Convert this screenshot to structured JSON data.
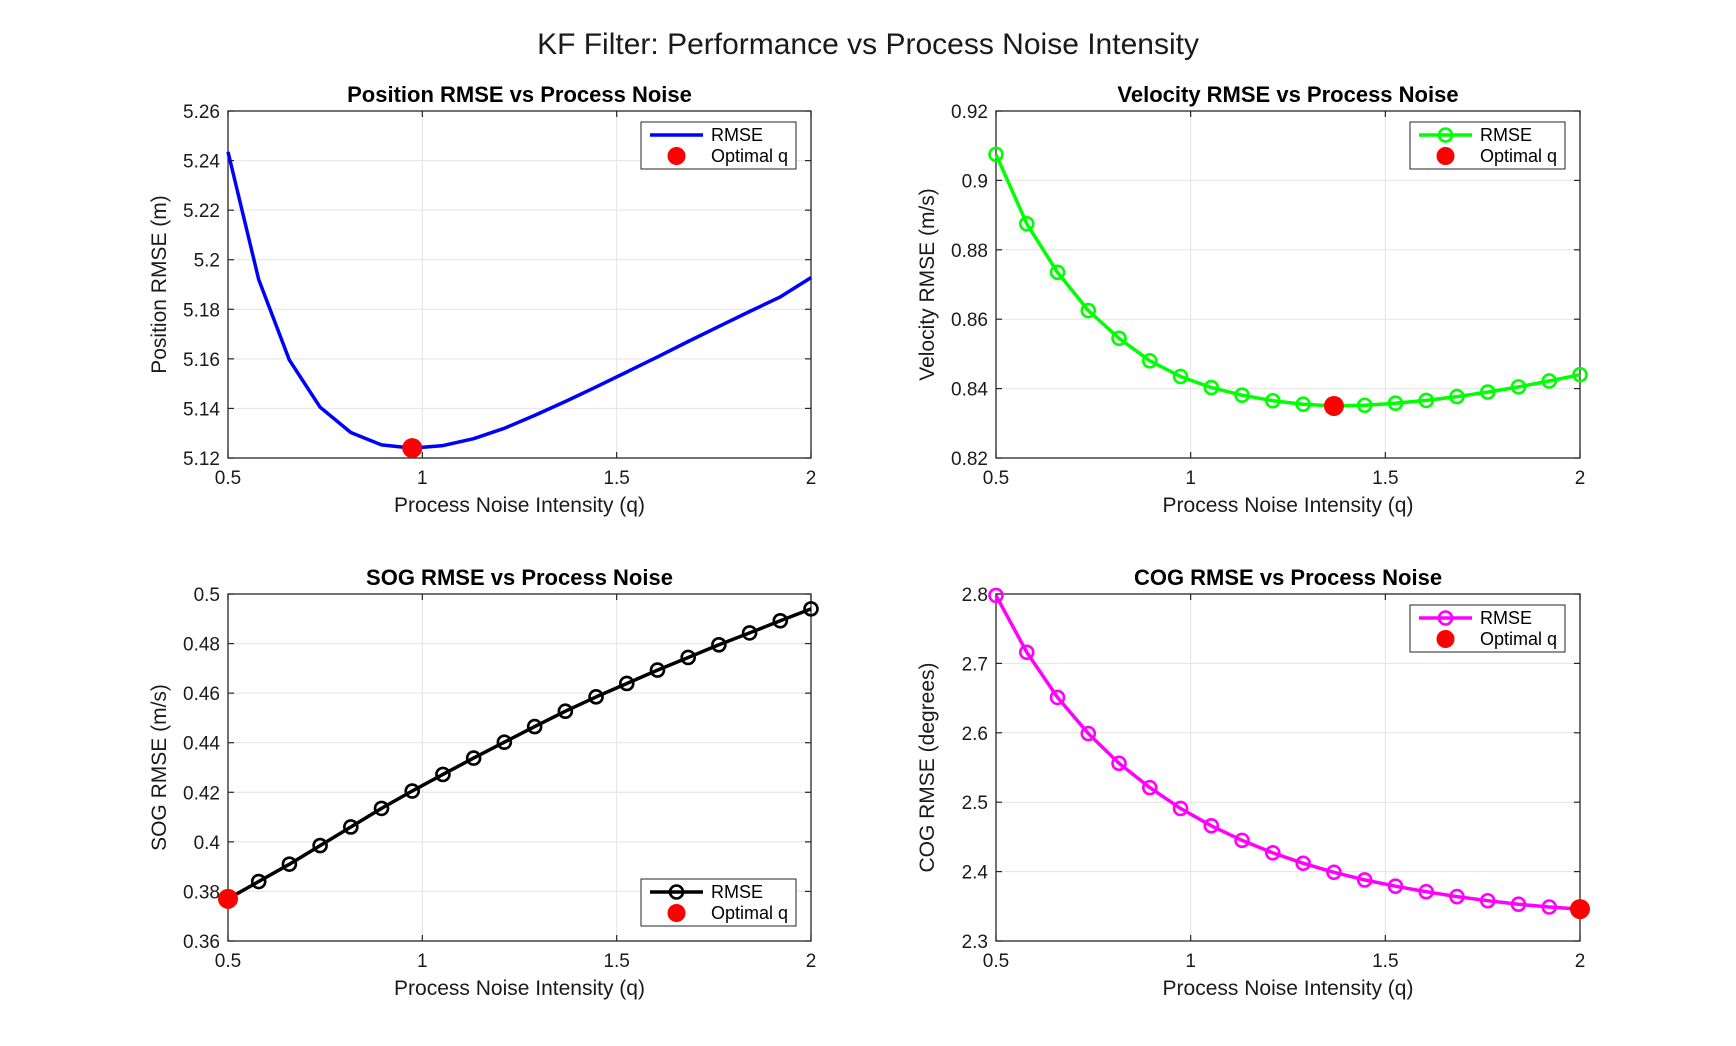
{
  "suptitle": "KF Filter: Performance vs Process Noise Intensity",
  "chart_data": [
    {
      "type": "line",
      "title": "Position RMSE vs Process Noise",
      "xlabel": "Process Noise Intensity (q)",
      "ylabel": "Position RMSE (m)",
      "xlim": [
        0.5,
        2
      ],
      "ylim": [
        5.12,
        5.26
      ],
      "xticks": [
        0.5,
        1,
        1.5,
        2
      ],
      "xtick_labels": [
        "0.5",
        "1",
        "1.5",
        "2"
      ],
      "yticks": [
        5.12,
        5.14,
        5.16,
        5.18,
        5.2,
        5.22,
        5.24,
        5.26
      ],
      "ytick_labels": [
        "5.12",
        "5.14",
        "5.16",
        "5.18",
        "5.2",
        "5.22",
        "5.24",
        "5.26"
      ],
      "grid": true,
      "legend_position": "top-right",
      "series": [
        {
          "name": "RMSE",
          "color": "#0000ff",
          "markers": false,
          "x": [
            0.5,
            0.579,
            0.658,
            0.737,
            0.816,
            0.895,
            0.974,
            1.053,
            1.132,
            1.211,
            1.289,
            1.368,
            1.447,
            1.526,
            1.605,
            1.684,
            1.763,
            1.842,
            1.921,
            2.0
          ],
          "y": [
            5.2435,
            5.192,
            5.1595,
            5.1405,
            5.1303,
            5.1253,
            5.124,
            5.125,
            5.1278,
            5.132,
            5.1372,
            5.1428,
            5.1487,
            5.1547,
            5.1608,
            5.167,
            5.1731,
            5.1791,
            5.185,
            5.1928
          ]
        }
      ],
      "optimal": {
        "name": "Optimal q",
        "x": 0.974,
        "y": 5.124,
        "color": "#ff0000"
      }
    },
    {
      "type": "line",
      "title": "Velocity RMSE vs Process Noise",
      "xlabel": "Process Noise Intensity (q)",
      "ylabel": "Velocity RMSE (m/s)",
      "xlim": [
        0.5,
        2
      ],
      "ylim": [
        0.82,
        0.92
      ],
      "xticks": [
        0.5,
        1,
        1.5,
        2
      ],
      "xtick_labels": [
        "0.5",
        "1",
        "1.5",
        "2"
      ],
      "yticks": [
        0.82,
        0.84,
        0.86,
        0.88,
        0.9,
        0.92
      ],
      "ytick_labels": [
        "0.82",
        "0.84",
        "0.86",
        "0.88",
        "0.9",
        "0.92"
      ],
      "grid": true,
      "legend_position": "top-right",
      "series": [
        {
          "name": "RMSE",
          "color": "#00ff00",
          "markers": true,
          "x": [
            0.5,
            0.579,
            0.658,
            0.737,
            0.816,
            0.895,
            0.974,
            1.053,
            1.132,
            1.211,
            1.289,
            1.368,
            1.447,
            1.526,
            1.605,
            1.684,
            1.763,
            1.842,
            1.921,
            2.0
          ],
          "y": [
            0.9075,
            0.8875,
            0.8735,
            0.8625,
            0.8545,
            0.848,
            0.8435,
            0.8403,
            0.8381,
            0.8365,
            0.8355,
            0.835,
            0.8352,
            0.8358,
            0.8366,
            0.8377,
            0.839,
            0.8405,
            0.8422,
            0.844
          ]
        }
      ],
      "optimal": {
        "name": "Optimal q",
        "x": 1.368,
        "y": 0.835,
        "color": "#ff0000"
      }
    },
    {
      "type": "line",
      "title": "SOG RMSE vs Process Noise",
      "xlabel": "Process Noise Intensity (q)",
      "ylabel": "SOG RMSE (m/s)",
      "xlim": [
        0.5,
        2
      ],
      "ylim": [
        0.36,
        0.5
      ],
      "xticks": [
        0.5,
        1,
        1.5,
        2
      ],
      "xtick_labels": [
        "0.5",
        "1",
        "1.5",
        "2"
      ],
      "yticks": [
        0.36,
        0.38,
        0.4,
        0.42,
        0.44,
        0.46,
        0.48,
        0.5
      ],
      "ytick_labels": [
        "0.36",
        "0.38",
        "0.4",
        "0.42",
        "0.44",
        "0.46",
        "0.48",
        "0.5"
      ],
      "grid": true,
      "legend_position": "bottom-right",
      "series": [
        {
          "name": "RMSE",
          "color": "#000000",
          "markers": true,
          "x": [
            0.5,
            0.579,
            0.658,
            0.737,
            0.816,
            0.895,
            0.974,
            1.053,
            1.132,
            1.211,
            1.289,
            1.368,
            1.447,
            1.526,
            1.605,
            1.684,
            1.763,
            1.842,
            1.921,
            2.0
          ],
          "y": [
            0.377,
            0.384,
            0.391,
            0.3985,
            0.406,
            0.4135,
            0.4205,
            0.4272,
            0.4338,
            0.4402,
            0.4465,
            0.4527,
            0.4585,
            0.4639,
            0.4693,
            0.4744,
            0.4795,
            0.4843,
            0.4892,
            0.494
          ]
        }
      ],
      "optimal": {
        "name": "Optimal q",
        "x": 0.5,
        "y": 0.377,
        "color": "#ff0000"
      }
    },
    {
      "type": "line",
      "title": "COG RMSE vs Process Noise",
      "xlabel": "Process Noise Intensity (q)",
      "ylabel": "COG RMSE (degrees)",
      "xlim": [
        0.5,
        2
      ],
      "ylim": [
        2.3,
        2.8
      ],
      "xticks": [
        0.5,
        1,
        1.5,
        2
      ],
      "xtick_labels": [
        "0.5",
        "1",
        "1.5",
        "2"
      ],
      "yticks": [
        2.3,
        2.4,
        2.5,
        2.6,
        2.7,
        2.8
      ],
      "ytick_labels": [
        "2.3",
        "2.4",
        "2.5",
        "2.6",
        "2.7",
        "2.8"
      ],
      "grid": true,
      "legend_position": "top-right",
      "series": [
        {
          "name": "RMSE",
          "color": "#ff00ff",
          "markers": true,
          "x": [
            0.5,
            0.579,
            0.658,
            0.737,
            0.816,
            0.895,
            0.974,
            1.053,
            1.132,
            1.211,
            1.289,
            1.368,
            1.447,
            1.526,
            1.605,
            1.684,
            1.763,
            1.842,
            1.921,
            2.0
          ],
          "y": [
            2.798,
            2.716,
            2.651,
            2.599,
            2.556,
            2.521,
            2.491,
            2.466,
            2.445,
            2.427,
            2.412,
            2.399,
            2.388,
            2.379,
            2.371,
            2.364,
            2.358,
            2.353,
            2.349,
            2.346
          ]
        }
      ],
      "optimal": {
        "name": "Optimal q",
        "x": 2.0,
        "y": 2.346,
        "color": "#ff0000"
      }
    }
  ]
}
